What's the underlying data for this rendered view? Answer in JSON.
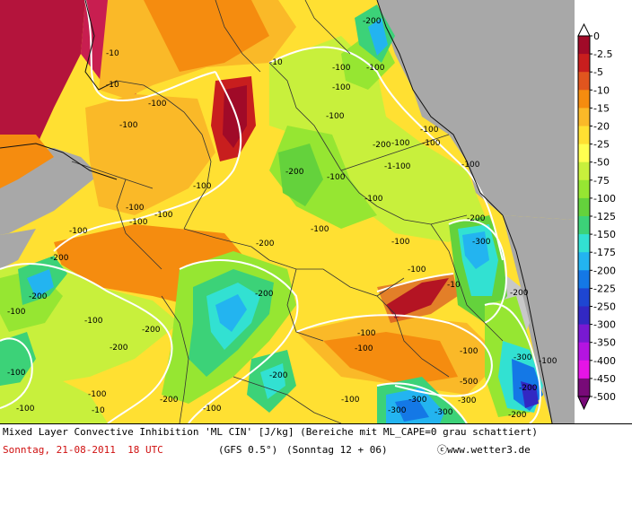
{
  "map": {
    "contour_labels": [
      "-10",
      "-10",
      "-10",
      "-100",
      "-100",
      "-100",
      "-100",
      "-100",
      "-200",
      "-100",
      "-100",
      "-200",
      "-100",
      "-100",
      "-200",
      "-100",
      "-1-100",
      "-100",
      "-100",
      "-100",
      "-100",
      "-100",
      "-100",
      "-200",
      "-100",
      "-200",
      "-200",
      "-100",
      "-100",
      "-200",
      "-300",
      "-10",
      "-100",
      "-200",
      "-200",
      "-100",
      "-200",
      "-300",
      "-100",
      "-100",
      "-100",
      "-200",
      "-200",
      "-100",
      "-300",
      "-300",
      "-200",
      "-300",
      "-300",
      "-500",
      "-100",
      "-100",
      "-100",
      "-200",
      "-200",
      "-100",
      "-100",
      "-100",
      "-10"
    ]
  },
  "legend": {
    "title": "ML CIN",
    "colors": [
      "#a00a28",
      "#c81e1e",
      "#e1551e",
      "#f58c0f",
      "#fab928",
      "#ffe032",
      "#ffff50",
      "#c8f03c",
      "#96e632",
      "#64d23c",
      "#3cd278",
      "#32e1d2",
      "#23b4f0",
      "#1478e6",
      "#1e46d2",
      "#3228c3",
      "#7819d2",
      "#b414e1",
      "#e614e6",
      "#780a78"
    ],
    "ticks": [
      "0",
      "-2.5",
      "-5",
      "-10",
      "-15",
      "-20",
      "-25",
      "-50",
      "-75",
      "-100",
      "-125",
      "-150",
      "-175",
      "-200",
      "-225",
      "-250",
      "-300",
      "-350",
      "-400",
      "-450",
      "-500"
    ]
  },
  "footer": {
    "line1": "Mixed Layer Convective Inhibition 'ML CIN' [J/kg] (Bereiche mit ML_CAPE=0 grau schattiert)",
    "date": "Sonntag, 21-08-2011  18 UTC",
    "model": "(GFS 0.5°)",
    "run": "(Sonntag 12 + 06)",
    "copyright": "ⓒwww.wetter3.de"
  }
}
